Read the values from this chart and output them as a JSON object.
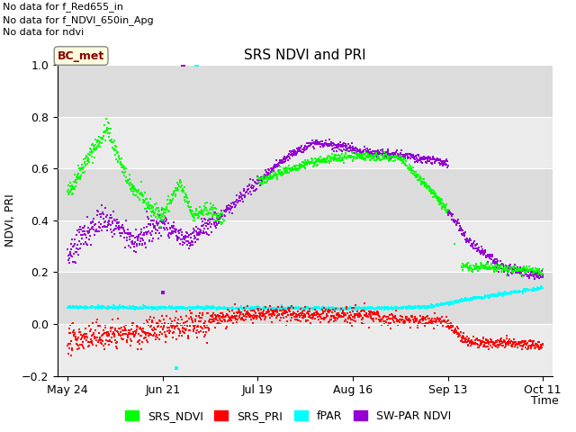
{
  "title": "SRS NDVI and PRI",
  "xlabel": "Time",
  "ylabel": "NDVI, PRI",
  "ylim": [
    -0.2,
    1.0
  ],
  "yticks": [
    -0.2,
    0.0,
    0.2,
    0.4,
    0.6,
    0.8,
    1.0
  ],
  "text_lines": [
    "No data for f_Red655_in",
    "No data for f_NDVI_650in_Apg",
    "No data for ndvi"
  ],
  "annotation_box": "BC_met",
  "colors": {
    "srs_ndvi": "#00FF00",
    "srs_pri": "#FF0000",
    "fpar": "#00FFFF",
    "sw_par_ndvi": "#9400D3"
  },
  "bg_color": "#EBEBEB",
  "alt_bg_color": "#D8D8D8",
  "tick_dates": [
    "May 24",
    "Jun 21",
    "Jul 19",
    "Aug 16",
    "Sep 13",
    "Oct 11"
  ],
  "tick_positions": [
    0,
    28,
    56,
    84,
    112,
    140
  ],
  "legend_labels": [
    "SRS_NDVI",
    "SRS_PRI",
    "fPAR",
    "SW-PAR NDVI"
  ],
  "figsize": [
    6.4,
    4.8
  ],
  "dpi": 100
}
